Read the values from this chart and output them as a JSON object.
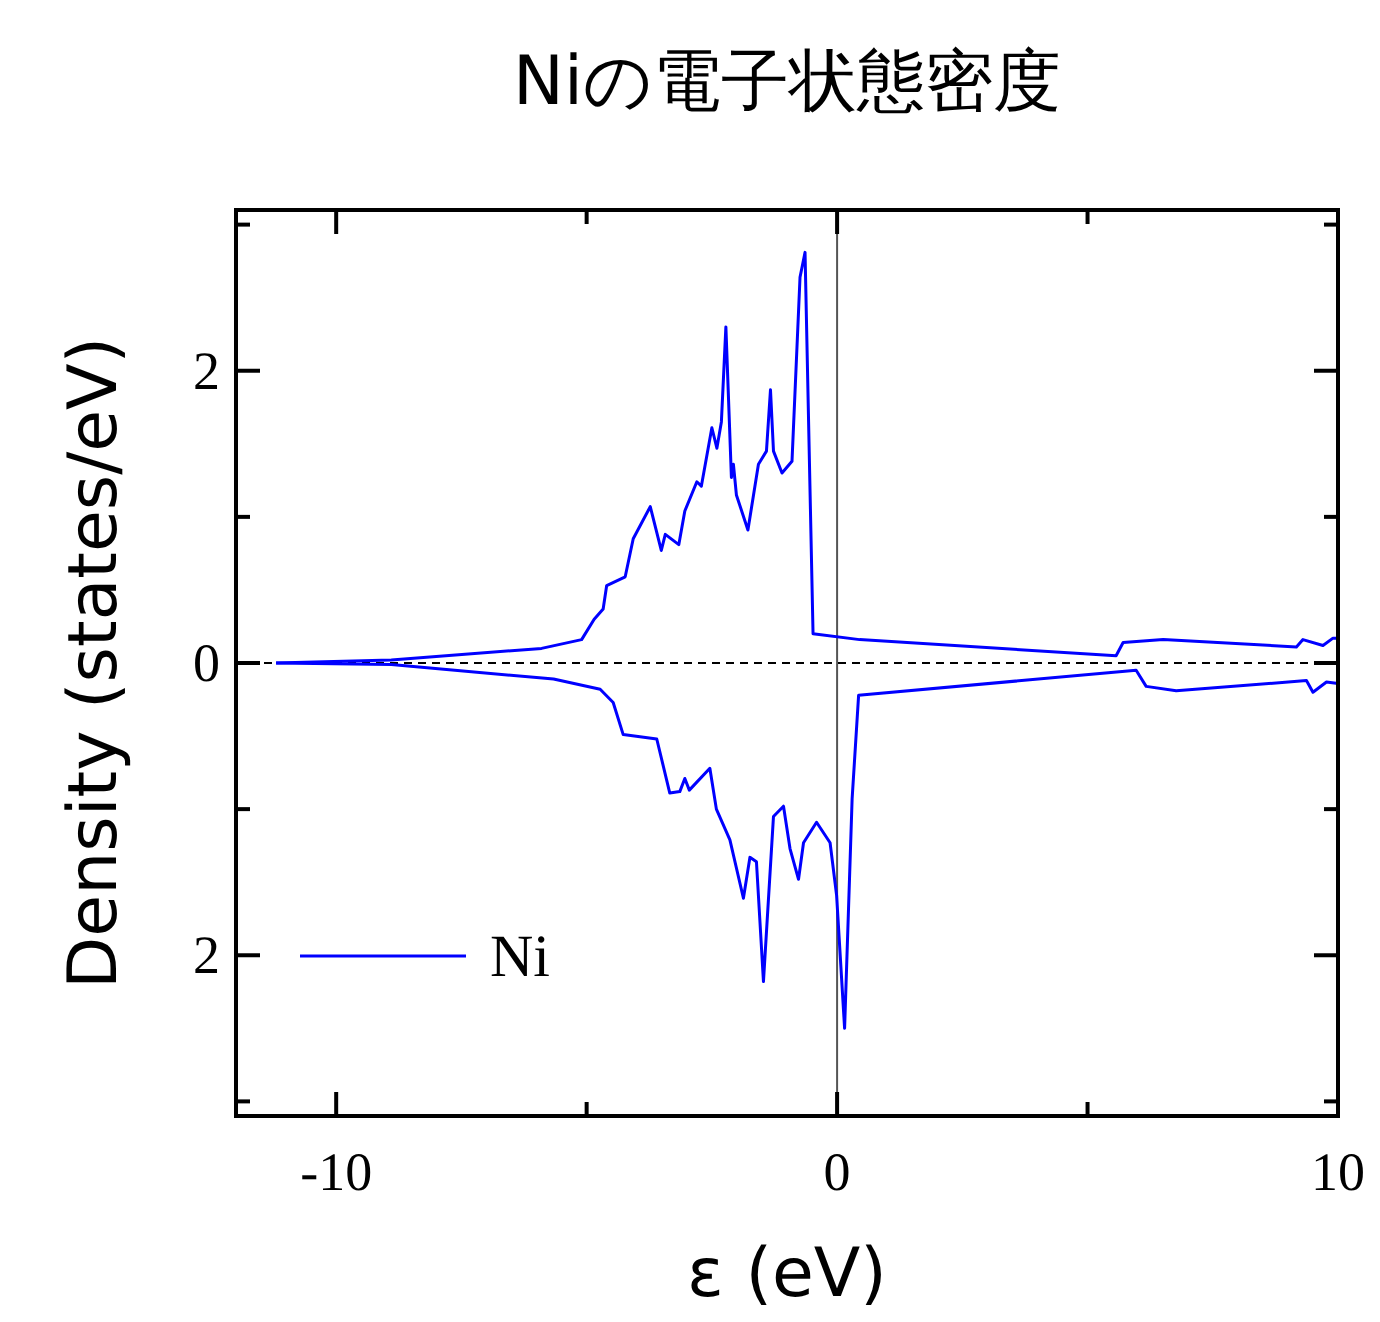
{
  "chart_data": {
    "type": "line",
    "title": "Niの電子状態密度",
    "xlabel": "ε (eV)",
    "ylabel": "Density (states/eV)",
    "xlim": [
      -12,
      10
    ],
    "xticks": [
      -10,
      {
        "value": -5,
        "label": null
      },
      0,
      {
        "value": 5,
        "label": null
      },
      10
    ],
    "ylim": [
      -3.1,
      3.1
    ],
    "yticks": [
      {
        "value": -3,
        "label": null
      },
      {
        "value": -2,
        "label": "2"
      },
      {
        "value": -1,
        "label": null
      },
      0,
      {
        "value": 1,
        "label": null
      },
      2,
      {
        "value": 3,
        "label": null
      }
    ],
    "legend": "bottom left",
    "ref_lines": [
      {
        "axis": "x",
        "value": 0,
        "color": "#555555",
        "line_style": "solid"
      },
      {
        "axis": "y",
        "value": 0,
        "color": "#000000",
        "line_style": "dashed"
      }
    ],
    "series": [
      {
        "name": "Ni",
        "color": "#0000ff",
        "x": [
          -11.2,
          -8.9,
          -5.9,
          -5.1,
          -4.85,
          -4.67,
          -4.6,
          -4.23,
          -4.07,
          -3.73,
          -3.51,
          -3.43,
          -3.16,
          -3.04,
          -2.8,
          -2.71,
          -2.5,
          -2.4,
          -2.31,
          -2.22,
          -2.11,
          -2.07,
          -2.01,
          -1.78,
          -1.57,
          -1.41,
          -1.33,
          -1.27,
          -1.1,
          -0.9,
          -0.74,
          -0.64,
          -0.48,
          0.45,
          5.57,
          5.71,
          6.51,
          9.17,
          9.3,
          9.7,
          9.9,
          10
        ],
        "values": [
          0,
          0.02,
          0.1,
          0.16,
          0.3,
          0.37,
          0.53,
          0.59,
          0.85,
          1.07,
          0.77,
          0.88,
          0.81,
          1.04,
          1.24,
          1.21,
          1.61,
          1.47,
          1.65,
          2.3,
          1.27,
          1.36,
          1.15,
          0.91,
          1.36,
          1.45,
          1.87,
          1.45,
          1.3,
          1.38,
          2.64,
          2.81,
          0.2,
          0.16,
          0.05,
          0.14,
          0.16,
          0.11,
          0.16,
          0.12,
          0.17,
          0.17
        ]
      },
      {
        "color": "#0000ff",
        "x": [
          -11.2,
          -8.9,
          -5.66,
          -4.73,
          -4.47,
          -4.27,
          -3.6,
          -3.34,
          -3.14,
          -3.04,
          -2.95,
          -2.54,
          -2.41,
          -2.14,
          -1.87,
          -1.74,
          -1.61,
          -1.47,
          -1.27,
          -1.07,
          -0.94,
          -0.77,
          -0.67,
          -0.41,
          -0.14,
          -0.01,
          0.15,
          0.3,
          0.43,
          5.97,
          6.17,
          6.77,
          9.37,
          9.5,
          9.77,
          10
        ],
        "values": [
          0,
          -0.01,
          -0.11,
          -0.18,
          -0.27,
          -0.49,
          -0.52,
          -0.89,
          -0.88,
          -0.79,
          -0.87,
          -0.72,
          -1.0,
          -1.21,
          -1.61,
          -1.33,
          -1.36,
          -2.18,
          -1.05,
          -0.98,
          -1.27,
          -1.48,
          -1.23,
          -1.09,
          -1.23,
          -1.59,
          -2.5,
          -0.93,
          -0.22,
          -0.05,
          -0.16,
          -0.19,
          -0.12,
          -0.2,
          -0.13,
          -0.14
        ]
      }
    ]
  }
}
